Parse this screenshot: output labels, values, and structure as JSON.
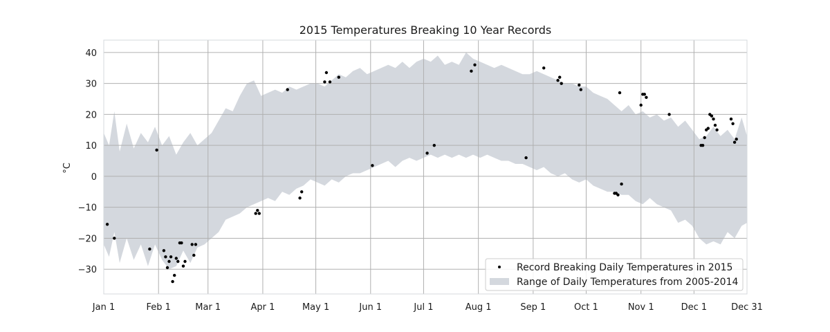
{
  "chart_data": {
    "type": "scatter",
    "title": "2015 Temperatures Breaking 10 Year Records",
    "xlabel": "",
    "ylabel": "°C",
    "x_domain": [
      "2015-01-01",
      "2015-12-31"
    ],
    "ylim": [
      -38,
      44
    ],
    "x_ticks": [
      {
        "date": "2015-01-01",
        "label": "Jan 1"
      },
      {
        "date": "2015-02-01",
        "label": "Feb 1"
      },
      {
        "date": "2015-03-01",
        "label": "Mar 1"
      },
      {
        "date": "2015-04-01",
        "label": "Apr 1"
      },
      {
        "date": "2015-05-01",
        "label": "May 1"
      },
      {
        "date": "2015-06-01",
        "label": "Jun 1"
      },
      {
        "date": "2015-07-01",
        "label": "Jul 1"
      },
      {
        "date": "2015-08-01",
        "label": "Aug 1"
      },
      {
        "date": "2015-09-01",
        "label": "Sep 1"
      },
      {
        "date": "2015-10-01",
        "label": "Oct 1"
      },
      {
        "date": "2015-11-01",
        "label": "Nov 1"
      },
      {
        "date": "2015-12-01",
        "label": "Dec 1"
      },
      {
        "date": "2015-12-31",
        "label": "Dec 31"
      }
    ],
    "y_ticks": [
      {
        "value": 40,
        "label": "40"
      },
      {
        "value": 30,
        "label": "30"
      },
      {
        "value": 20,
        "label": "20"
      },
      {
        "value": 10,
        "label": "10"
      },
      {
        "value": 0,
        "label": "0"
      },
      {
        "value": -10,
        "label": "−10"
      },
      {
        "value": -20,
        "label": "−20"
      },
      {
        "value": -30,
        "label": "−30"
      }
    ],
    "grid": true,
    "legend_position": "lower-right",
    "colors": {
      "band": "#d4d8de",
      "points": "#000000",
      "grid": "#b0b0b0",
      "frame": "#d4d8de"
    },
    "series": [
      {
        "name": "Record Breaking Daily Temperatures in 2015",
        "kind": "scatter",
        "points": [
          {
            "date": "2015-01-03",
            "y": -15.5
          },
          {
            "date": "2015-01-07",
            "y": -20
          },
          {
            "date": "2015-01-27",
            "y": -23.5
          },
          {
            "date": "2015-01-31",
            "y": 8.5
          },
          {
            "date": "2015-02-04",
            "y": -24
          },
          {
            "date": "2015-02-05",
            "y": -26
          },
          {
            "date": "2015-02-06",
            "y": -29.5
          },
          {
            "date": "2015-02-07",
            "y": -27.5
          },
          {
            "date": "2015-02-08",
            "y": -26
          },
          {
            "date": "2015-02-09",
            "y": -34
          },
          {
            "date": "2015-02-10",
            "y": -32
          },
          {
            "date": "2015-02-11",
            "y": -26.5
          },
          {
            "date": "2015-02-12",
            "y": -27.5
          },
          {
            "date": "2015-02-13",
            "y": -21.5
          },
          {
            "date": "2015-02-14",
            "y": -21.5
          },
          {
            "date": "2015-02-15",
            "y": -29
          },
          {
            "date": "2015-02-16",
            "y": -27.5
          },
          {
            "date": "2015-02-20",
            "y": -22
          },
          {
            "date": "2015-02-21",
            "y": -25.5
          },
          {
            "date": "2015-02-22",
            "y": -22
          },
          {
            "date": "2015-03-28",
            "y": -12
          },
          {
            "date": "2015-03-29",
            "y": -11
          },
          {
            "date": "2015-03-30",
            "y": -12
          },
          {
            "date": "2015-04-15",
            "y": 28
          },
          {
            "date": "2015-04-22",
            "y": -7
          },
          {
            "date": "2015-04-23",
            "y": -5
          },
          {
            "date": "2015-05-06",
            "y": 30.5
          },
          {
            "date": "2015-05-07",
            "y": 33.5
          },
          {
            "date": "2015-05-09",
            "y": 30.5
          },
          {
            "date": "2015-05-14",
            "y": 32
          },
          {
            "date": "2015-06-02",
            "y": 3.5
          },
          {
            "date": "2015-07-03",
            "y": 7.5
          },
          {
            "date": "2015-07-07",
            "y": 10
          },
          {
            "date": "2015-07-28",
            "y": 34
          },
          {
            "date": "2015-07-30",
            "y": 36
          },
          {
            "date": "2015-08-28",
            "y": 6
          },
          {
            "date": "2015-09-07",
            "y": 35
          },
          {
            "date": "2015-09-15",
            "y": 31
          },
          {
            "date": "2015-09-16",
            "y": 32
          },
          {
            "date": "2015-09-17",
            "y": 30
          },
          {
            "date": "2015-09-27",
            "y": 29.5
          },
          {
            "date": "2015-09-28",
            "y": 28
          },
          {
            "date": "2015-10-17",
            "y": -5.5
          },
          {
            "date": "2015-10-18",
            "y": -5.5
          },
          {
            "date": "2015-10-19",
            "y": -6
          },
          {
            "date": "2015-10-20",
            "y": 27
          },
          {
            "date": "2015-10-21",
            "y": -2.5
          },
          {
            "date": "2015-11-01",
            "y": 23
          },
          {
            "date": "2015-11-02",
            "y": 26.5
          },
          {
            "date": "2015-11-03",
            "y": 26.5
          },
          {
            "date": "2015-11-04",
            "y": 25.5
          },
          {
            "date": "2015-11-17",
            "y": 20
          },
          {
            "date": "2015-12-05",
            "y": 10
          },
          {
            "date": "2015-12-06",
            "y": 10
          },
          {
            "date": "2015-12-07",
            "y": 12.5
          },
          {
            "date": "2015-12-08",
            "y": 15
          },
          {
            "date": "2015-12-09",
            "y": 15.5
          },
          {
            "date": "2015-12-10",
            "y": 20
          },
          {
            "date": "2015-12-11",
            "y": 19.5
          },
          {
            "date": "2015-12-12",
            "y": 18.5
          },
          {
            "date": "2015-12-13",
            "y": 16.5
          },
          {
            "date": "2015-12-14",
            "y": 15
          },
          {
            "date": "2015-12-22",
            "y": 18.5
          },
          {
            "date": "2015-12-23",
            "y": 17
          },
          {
            "date": "2015-12-24",
            "y": 11
          },
          {
            "date": "2015-12-25",
            "y": 12
          }
        ]
      },
      {
        "name": "Range of Daily Temperatures from 2005-2014",
        "kind": "band",
        "points": [
          {
            "date": "2015-01-01",
            "low": -22,
            "high": 14
          },
          {
            "date": "2015-01-04",
            "low": -26,
            "high": 10
          },
          {
            "date": "2015-01-07",
            "low": -18,
            "high": 21
          },
          {
            "date": "2015-01-10",
            "low": -28,
            "high": 8
          },
          {
            "date": "2015-01-14",
            "low": -20,
            "high": 17
          },
          {
            "date": "2015-01-18",
            "low": -27,
            "high": 9
          },
          {
            "date": "2015-01-22",
            "low": -22,
            "high": 14
          },
          {
            "date": "2015-01-26",
            "low": -29,
            "high": 11
          },
          {
            "date": "2015-01-30",
            "low": -22,
            "high": 16
          },
          {
            "date": "2015-02-03",
            "low": -27,
            "high": 10
          },
          {
            "date": "2015-02-07",
            "low": -30,
            "high": 13
          },
          {
            "date": "2015-02-11",
            "low": -29,
            "high": 7
          },
          {
            "date": "2015-02-15",
            "low": -24,
            "high": 11
          },
          {
            "date": "2015-02-19",
            "low": -28,
            "high": 14
          },
          {
            "date": "2015-02-23",
            "low": -23,
            "high": 10
          },
          {
            "date": "2015-02-27",
            "low": -22,
            "high": 12
          },
          {
            "date": "2015-03-03",
            "low": -20,
            "high": 14
          },
          {
            "date": "2015-03-07",
            "low": -18,
            "high": 18
          },
          {
            "date": "2015-03-11",
            "low": -14,
            "high": 22
          },
          {
            "date": "2015-03-15",
            "low": -13,
            "high": 21
          },
          {
            "date": "2015-03-19",
            "low": -12,
            "high": 26
          },
          {
            "date": "2015-03-23",
            "low": -10,
            "high": 30
          },
          {
            "date": "2015-03-27",
            "low": -9,
            "high": 31
          },
          {
            "date": "2015-03-31",
            "low": -8,
            "high": 26
          },
          {
            "date": "2015-04-04",
            "low": -7,
            "high": 27
          },
          {
            "date": "2015-04-08",
            "low": -8,
            "high": 28
          },
          {
            "date": "2015-04-12",
            "low": -5,
            "high": 27
          },
          {
            "date": "2015-04-16",
            "low": -6,
            "high": 29
          },
          {
            "date": "2015-04-20",
            "low": -4,
            "high": 28
          },
          {
            "date": "2015-04-24",
            "low": -3,
            "high": 29
          },
          {
            "date": "2015-04-28",
            "low": -1,
            "high": 30
          },
          {
            "date": "2015-05-02",
            "low": -2,
            "high": 30
          },
          {
            "date": "2015-05-06",
            "low": -3,
            "high": 29
          },
          {
            "date": "2015-05-10",
            "low": -1,
            "high": 31
          },
          {
            "date": "2015-05-14",
            "low": -2,
            "high": 33
          },
          {
            "date": "2015-05-18",
            "low": 0,
            "high": 32
          },
          {
            "date": "2015-05-22",
            "low": 1,
            "high": 34
          },
          {
            "date": "2015-05-26",
            "low": 1,
            "high": 35
          },
          {
            "date": "2015-05-30",
            "low": 2,
            "high": 33
          },
          {
            "date": "2015-06-03",
            "low": 3,
            "high": 34
          },
          {
            "date": "2015-06-07",
            "low": 4,
            "high": 35
          },
          {
            "date": "2015-06-11",
            "low": 5,
            "high": 36
          },
          {
            "date": "2015-06-15",
            "low": 3,
            "high": 35
          },
          {
            "date": "2015-06-19",
            "low": 5,
            "high": 37
          },
          {
            "date": "2015-06-23",
            "low": 6,
            "high": 35
          },
          {
            "date": "2015-06-27",
            "low": 5,
            "high": 37
          },
          {
            "date": "2015-07-01",
            "low": 6,
            "high": 38
          },
          {
            "date": "2015-07-05",
            "low": 7,
            "high": 37
          },
          {
            "date": "2015-07-09",
            "low": 6,
            "high": 39
          },
          {
            "date": "2015-07-13",
            "low": 7,
            "high": 36
          },
          {
            "date": "2015-07-17",
            "low": 6,
            "high": 37
          },
          {
            "date": "2015-07-21",
            "low": 7,
            "high": 36
          },
          {
            "date": "2015-07-25",
            "low": 6,
            "high": 40
          },
          {
            "date": "2015-07-29",
            "low": 7,
            "high": 38
          },
          {
            "date": "2015-08-02",
            "low": 6,
            "high": 37
          },
          {
            "date": "2015-08-06",
            "low": 7,
            "high": 36
          },
          {
            "date": "2015-08-10",
            "low": 6,
            "high": 35
          },
          {
            "date": "2015-08-14",
            "low": 5,
            "high": 36
          },
          {
            "date": "2015-08-18",
            "low": 5,
            "high": 35
          },
          {
            "date": "2015-08-22",
            "low": 4,
            "high": 34
          },
          {
            "date": "2015-08-26",
            "low": 4,
            "high": 33
          },
          {
            "date": "2015-08-30",
            "low": 3,
            "high": 33
          },
          {
            "date": "2015-09-03",
            "low": 2,
            "high": 34
          },
          {
            "date": "2015-09-07",
            "low": 3,
            "high": 33
          },
          {
            "date": "2015-09-11",
            "low": 1,
            "high": 32
          },
          {
            "date": "2015-09-15",
            "low": 0,
            "high": 31
          },
          {
            "date": "2015-09-19",
            "low": 1,
            "high": 30
          },
          {
            "date": "2015-09-23",
            "low": -1,
            "high": 30
          },
          {
            "date": "2015-09-27",
            "low": -2,
            "high": 29
          },
          {
            "date": "2015-10-01",
            "low": -1,
            "high": 29
          },
          {
            "date": "2015-10-05",
            "low": -3,
            "high": 27
          },
          {
            "date": "2015-10-09",
            "low": -4,
            "high": 26
          },
          {
            "date": "2015-10-13",
            "low": -5,
            "high": 25
          },
          {
            "date": "2015-10-17",
            "low": -5,
            "high": 23
          },
          {
            "date": "2015-10-21",
            "low": -6,
            "high": 21
          },
          {
            "date": "2015-10-25",
            "low": -6,
            "high": 23
          },
          {
            "date": "2015-10-29",
            "low": -8,
            "high": 20
          },
          {
            "date": "2015-11-02",
            "low": -9,
            "high": 21
          },
          {
            "date": "2015-11-06",
            "low": -7,
            "high": 19
          },
          {
            "date": "2015-11-10",
            "low": -9,
            "high": 20
          },
          {
            "date": "2015-11-14",
            "low": -10,
            "high": 18
          },
          {
            "date": "2015-11-18",
            "low": -11,
            "high": 19
          },
          {
            "date": "2015-11-22",
            "low": -15,
            "high": 16
          },
          {
            "date": "2015-11-26",
            "low": -14,
            "high": 18
          },
          {
            "date": "2015-11-30",
            "low": -16,
            "high": 15
          },
          {
            "date": "2015-12-04",
            "low": -20,
            "high": 12
          },
          {
            "date": "2015-12-08",
            "low": -22,
            "high": 13
          },
          {
            "date": "2015-12-12",
            "low": -21,
            "high": 16
          },
          {
            "date": "2015-12-16",
            "low": -22,
            "high": 13
          },
          {
            "date": "2015-12-20",
            "low": -18,
            "high": 15
          },
          {
            "date": "2015-12-24",
            "low": -20,
            "high": 12
          },
          {
            "date": "2015-12-28",
            "low": -16,
            "high": 19
          },
          {
            "date": "2015-12-31",
            "low": -15,
            "high": 13
          }
        ]
      }
    ]
  }
}
